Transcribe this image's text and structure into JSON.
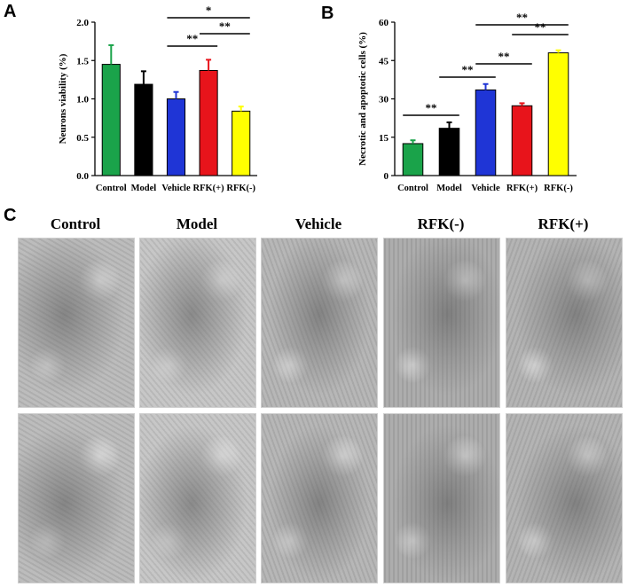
{
  "panels": {
    "a": "A",
    "b": "B",
    "c": "C"
  },
  "chart_data": [
    {
      "type": "bar",
      "ylabel": "Neurons viability (%)",
      "xlabel": "",
      "categories": [
        "Control",
        "Model",
        "Vehicle",
        "RFK(+)",
        "RFK(-)"
      ],
      "values": [
        1.45,
        1.19,
        1.0,
        1.37,
        0.84
      ],
      "errors": [
        0.25,
        0.17,
        0.09,
        0.14,
        0.06
      ],
      "colors": [
        "#1aa34a",
        "#000000",
        "#1f35d6",
        "#e8141b",
        "#ffff00"
      ],
      "ylim": [
        0,
        2.0
      ],
      "yticks": [
        "0.0",
        "0.5",
        "1.0",
        "1.5",
        "2.0"
      ],
      "grid": false,
      "annotations": [
        {
          "from": 2,
          "to": 4,
          "text": "*"
        },
        {
          "from": 2,
          "to": 3,
          "text": "**"
        },
        {
          "from": 3,
          "to": 4,
          "text": "**"
        }
      ]
    },
    {
      "type": "bar",
      "ylabel": "Necrotic and apoptotic cells (%)",
      "xlabel": "",
      "categories": [
        "Control",
        "Model",
        "Vehicle",
        "RFK(+)",
        "RFK(-)"
      ],
      "values": [
        12.5,
        18.5,
        33.5,
        27.3,
        48.0
      ],
      "errors": [
        1.3,
        2.3,
        2.3,
        1.0,
        1.0
      ],
      "colors": [
        "#1aa34a",
        "#000000",
        "#1f35d6",
        "#e8141b",
        "#ffff00"
      ],
      "ylim": [
        0,
        60
      ],
      "yticks": [
        "0",
        "15",
        "30",
        "45",
        "60"
      ],
      "grid": false,
      "annotations": [
        {
          "from": 0,
          "to": 1,
          "text": "**"
        },
        {
          "from": 1,
          "to": 2,
          "text": "**"
        },
        {
          "from": 2,
          "to": 3,
          "text": "**"
        },
        {
          "from": 3,
          "to": 4,
          "text": "**"
        },
        {
          "from": 2,
          "to": 4,
          "text": "**"
        }
      ]
    }
  ],
  "micrographs": {
    "labels": [
      "Control",
      "Model",
      "Vehicle",
      "RFK(-)",
      "RFK(+)"
    ],
    "tones": [
      "#b9b9b9",
      "#c4c4c4",
      "#b3b3b3",
      "#a9a9a9",
      "#b0b0b0"
    ]
  }
}
